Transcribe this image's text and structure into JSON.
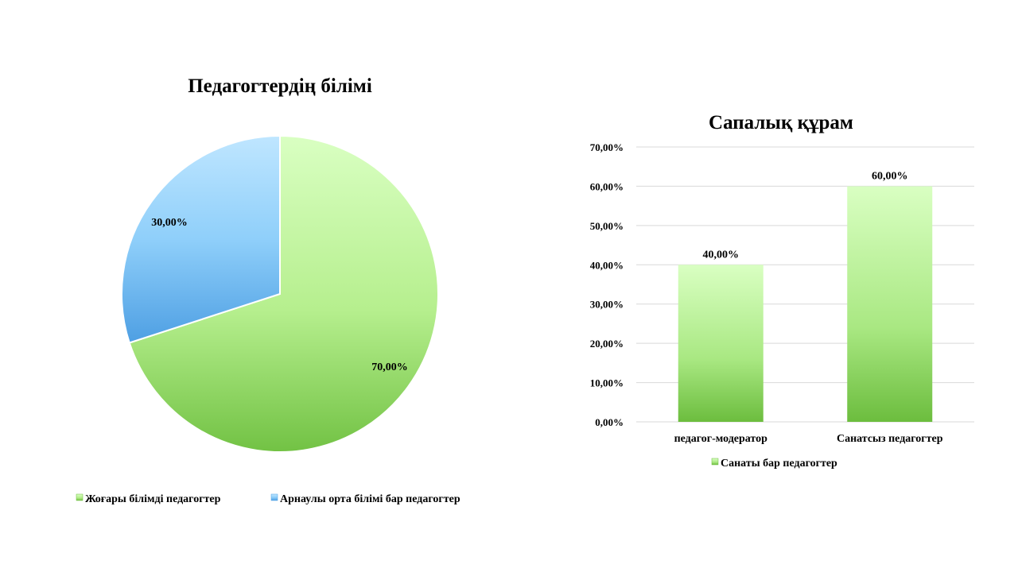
{
  "chart_data": [
    {
      "type": "pie",
      "title": "Педагогтердің білімі",
      "slices": [
        {
          "name": "Жоғары білімді педагогтер",
          "value": 70,
          "label": "70,00%",
          "color": "#8ed35e"
        },
        {
          "name": "Арнаулы орта білімі бар педагогтер",
          "value": 30,
          "label": "30,00%",
          "color": "#6fb6ef"
        }
      ],
      "legend_position": "bottom"
    },
    {
      "type": "bar",
      "title": "Сапалық құрам",
      "categories": [
        "педагог-модератор",
        "Санатсыз педагогтер"
      ],
      "series": [
        {
          "name": "Санаты бар педагогтер",
          "values": [
            40,
            60
          ],
          "labels": [
            "40,00%",
            "60,00%"
          ],
          "color": "#8ed35e"
        }
      ],
      "ylim": [
        0,
        70
      ],
      "yticks": [
        "0,00%",
        "10,00%",
        "20,00%",
        "30,00%",
        "40,00%",
        "50,00%",
        "60,00%",
        "70,00%"
      ],
      "grid": true,
      "legend_position": "bottom"
    }
  ]
}
